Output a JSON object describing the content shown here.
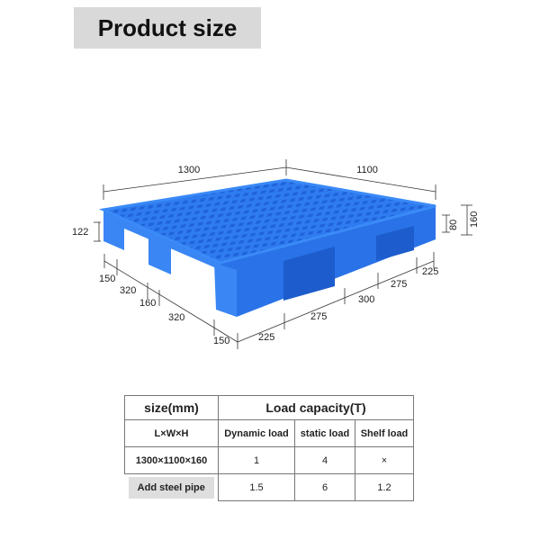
{
  "title": "Product size",
  "dimensions": {
    "length": "1300",
    "width": "1100",
    "height_total": "160",
    "height_deck": "80",
    "height_left": "122",
    "left_segments": [
      "150",
      "320",
      "160",
      "320",
      "150"
    ],
    "front_segments": [
      "225",
      "275",
      "300",
      "275",
      "225"
    ]
  },
  "colors": {
    "pallet": "#2f7bf0",
    "pallet_dark": "#1a5fd6"
  },
  "table": {
    "size_header": "size(mm)",
    "load_header": "Load capacity(T)",
    "dim_label": "L×W×H",
    "columns": [
      "Dynamic load",
      "static load",
      "Shelf load"
    ],
    "rows": [
      {
        "label": "1300×1100×160",
        "values": [
          "1",
          "4",
          "×"
        ]
      },
      {
        "label": "Add steel pipe",
        "values": [
          "1.5",
          "6",
          "1.2"
        ]
      }
    ]
  }
}
